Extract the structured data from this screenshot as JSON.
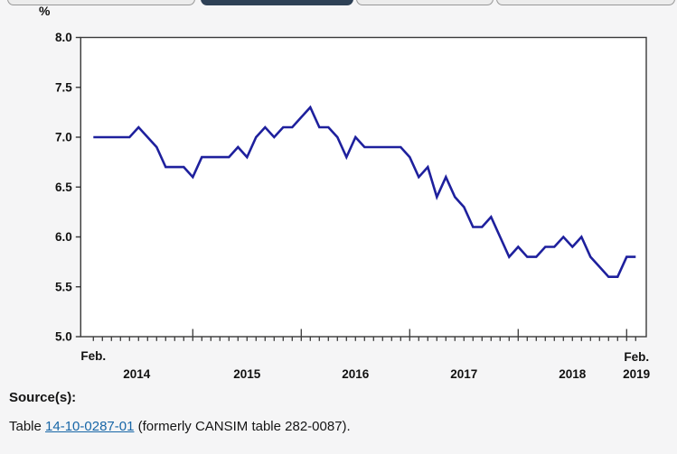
{
  "tabs": {
    "count": 4,
    "active_index": 1
  },
  "chart_data": {
    "type": "line",
    "title": "",
    "frequency": "monthly",
    "y_axis": {
      "unit_label": "%",
      "min": 5.0,
      "max": 8.0,
      "step": 0.5,
      "tick_labels": [
        "8.0",
        "7.5",
        "7.0",
        "6.5",
        "6.0",
        "5.5",
        "5.0"
      ]
    },
    "x_axis": {
      "edge_month_label_left": "Feb.",
      "edge_month_label_right": "Feb.",
      "year_labels": [
        "2014",
        "2015",
        "2016",
        "2017",
        "2018",
        "2019"
      ]
    },
    "x_months": [
      "2014-02",
      "2014-03",
      "2014-04",
      "2014-05",
      "2014-06",
      "2014-07",
      "2014-08",
      "2014-09",
      "2014-10",
      "2014-11",
      "2014-12",
      "2015-01",
      "2015-02",
      "2015-03",
      "2015-04",
      "2015-05",
      "2015-06",
      "2015-07",
      "2015-08",
      "2015-09",
      "2015-10",
      "2015-11",
      "2015-12",
      "2016-01",
      "2016-02",
      "2016-03",
      "2016-04",
      "2016-05",
      "2016-06",
      "2016-07",
      "2016-08",
      "2016-09",
      "2016-10",
      "2016-11",
      "2016-12",
      "2017-01",
      "2017-02",
      "2017-03",
      "2017-04",
      "2017-05",
      "2017-06",
      "2017-07",
      "2017-08",
      "2017-09",
      "2017-10",
      "2017-11",
      "2017-12",
      "2018-01",
      "2018-02",
      "2018-03",
      "2018-04",
      "2018-05",
      "2018-06",
      "2018-07",
      "2018-08",
      "2018-09",
      "2018-10",
      "2018-11",
      "2018-12",
      "2019-01",
      "2019-02"
    ],
    "series": [
      {
        "color": "#1e209d",
        "values": [
          7.0,
          7.0,
          7.0,
          7.0,
          7.0,
          7.1,
          7.0,
          6.9,
          6.7,
          6.7,
          6.7,
          6.6,
          6.8,
          6.8,
          6.8,
          6.8,
          6.9,
          6.8,
          7.0,
          7.1,
          7.0,
          7.1,
          7.1,
          7.2,
          7.3,
          7.1,
          7.1,
          7.0,
          6.8,
          7.0,
          6.9,
          6.9,
          6.9,
          6.9,
          6.9,
          6.8,
          6.6,
          6.7,
          6.4,
          6.6,
          6.4,
          6.3,
          6.1,
          6.1,
          6.2,
          6.0,
          5.8,
          5.9,
          5.8,
          5.8,
          5.9,
          5.9,
          6.0,
          5.9,
          6.0,
          5.8,
          5.7,
          5.6,
          5.6,
          5.8,
          5.8
        ]
      }
    ],
    "grid": false,
    "legend": false,
    "plot_background": "#ffffff",
    "axis_color": "#3a3a3a"
  },
  "source": {
    "heading": "Source(s):",
    "prefix": "Table ",
    "link_text": "14-10-0287-01",
    "suffix": " (formerly CANSIM table 282-0087)."
  }
}
